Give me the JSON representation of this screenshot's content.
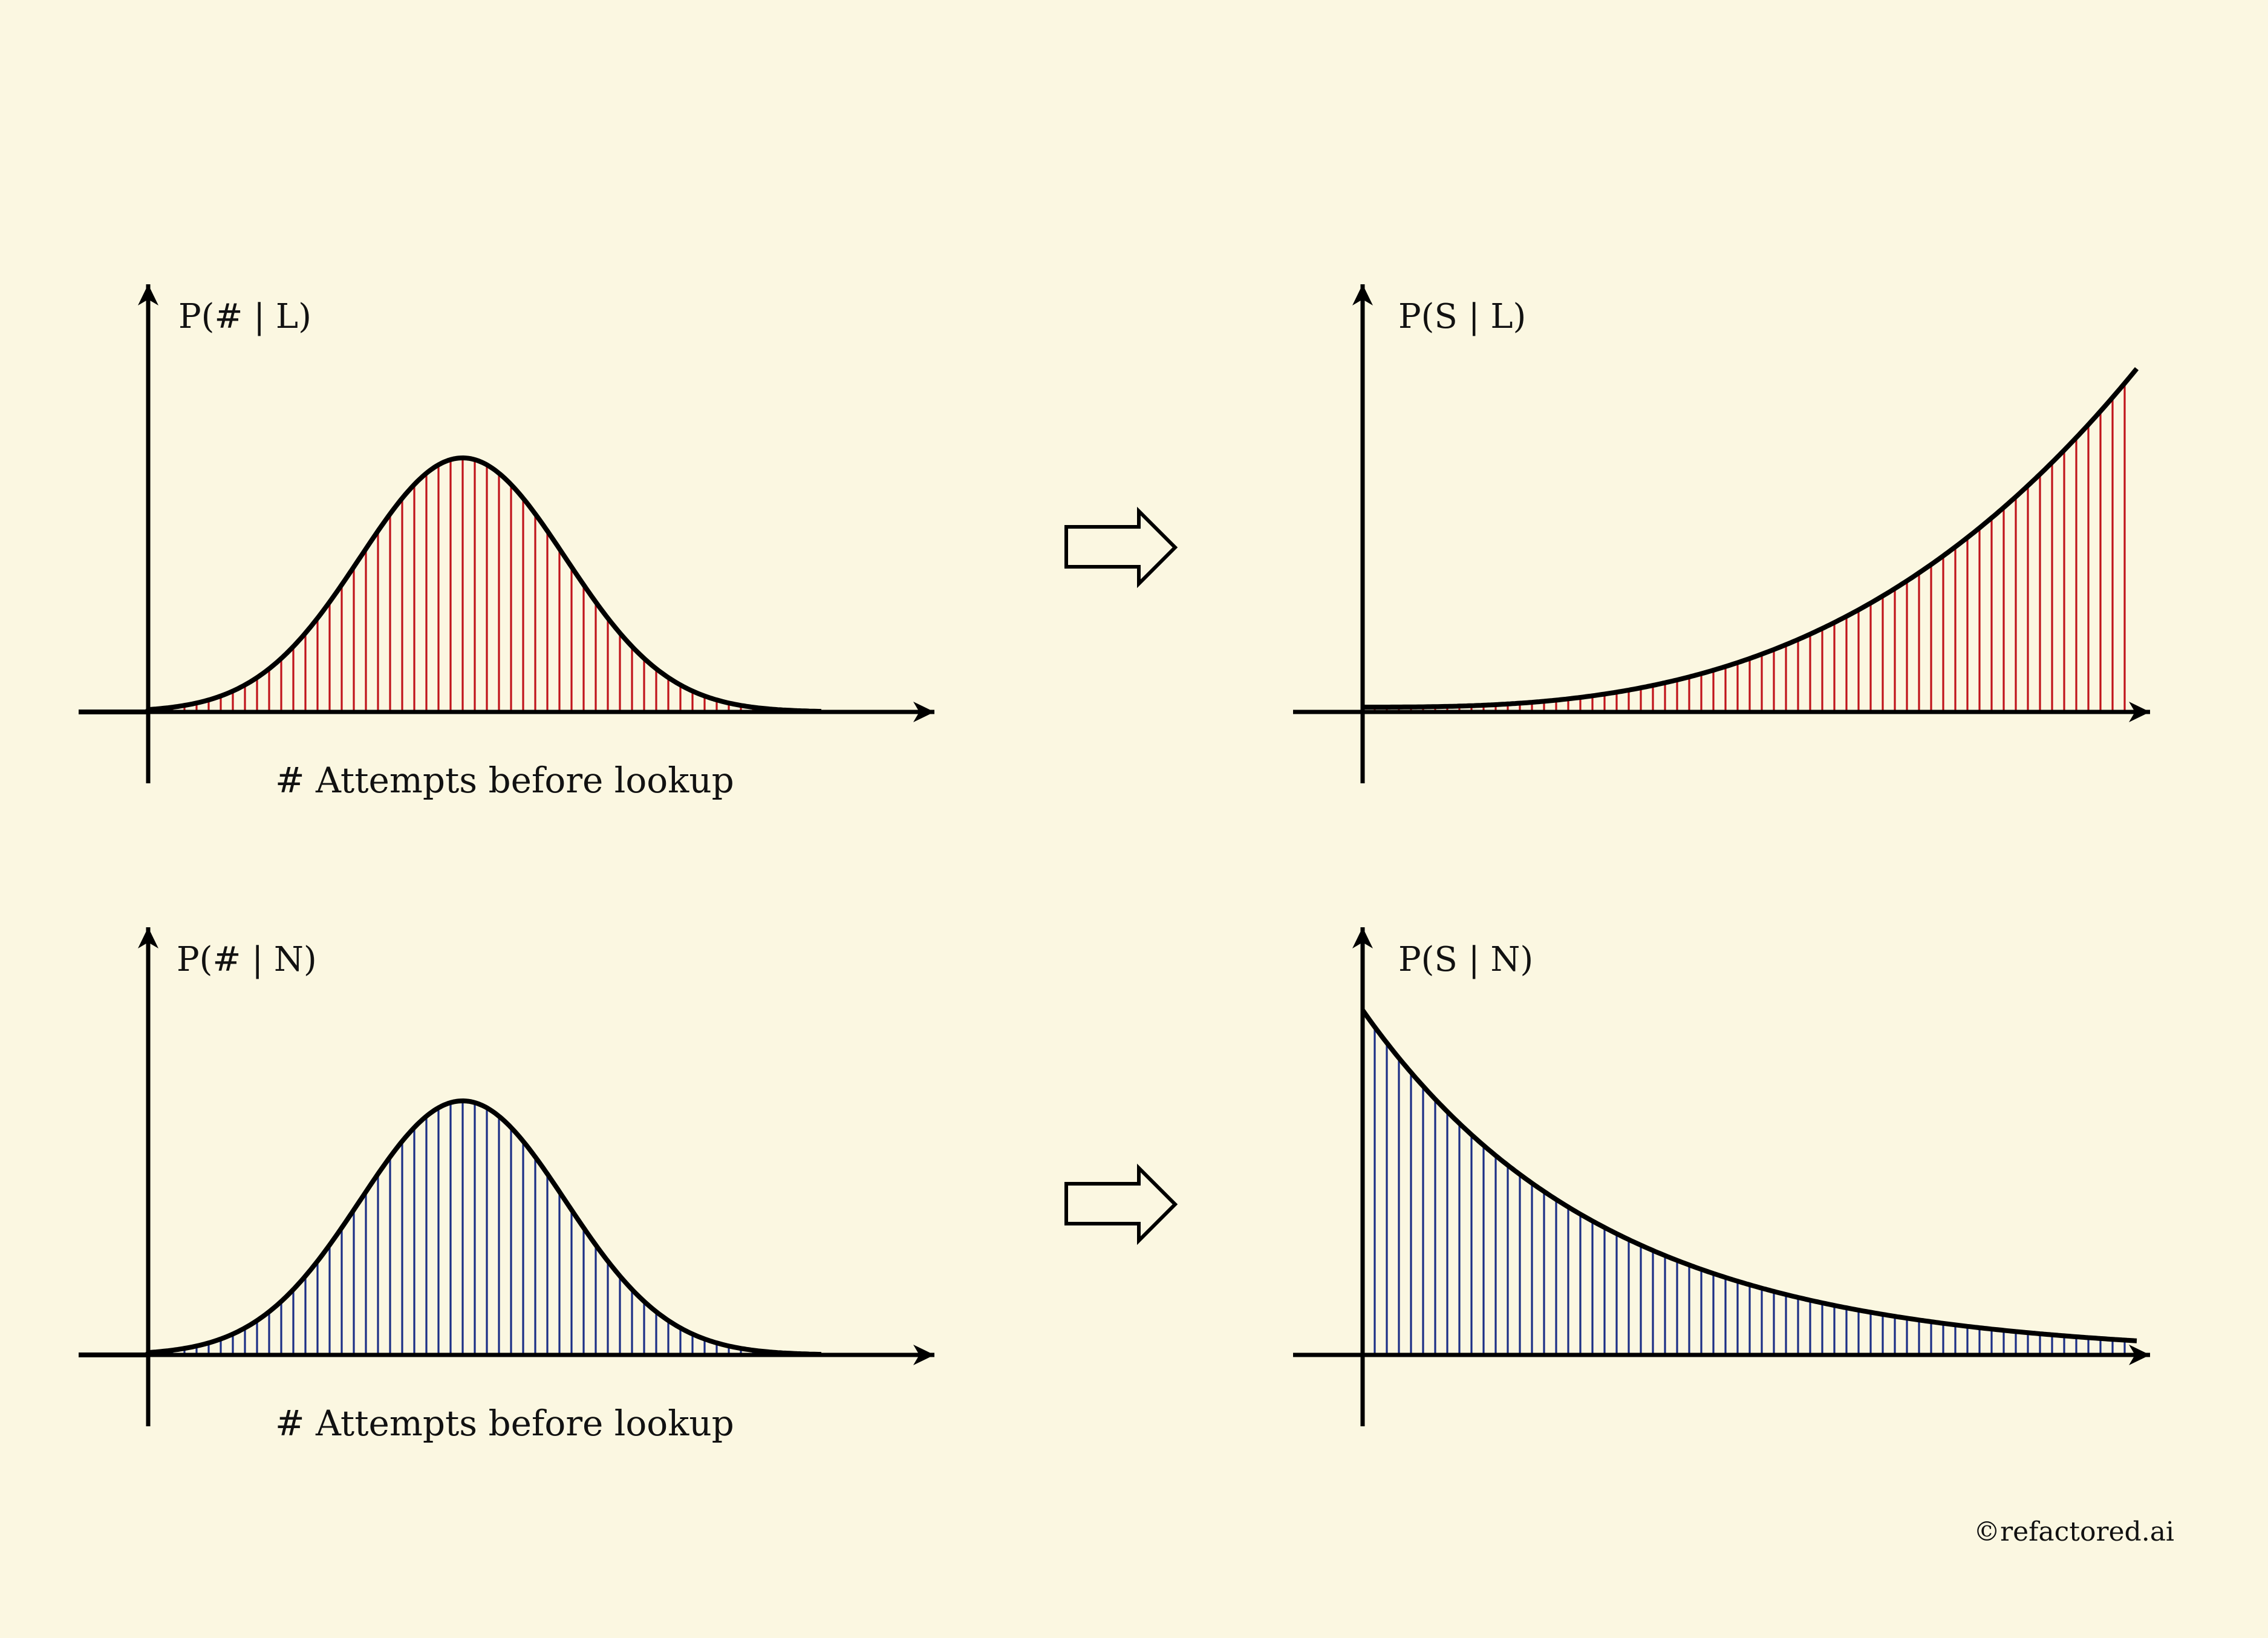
{
  "panels": [
    {
      "id": "top-left",
      "y_label": "P(# | L)",
      "x_label": "# Attempts before lookup",
      "curve": "bell",
      "hatch": "red"
    },
    {
      "id": "top-right",
      "y_label": "P(S | L)",
      "x_label": "",
      "curve": "rising",
      "hatch": "red"
    },
    {
      "id": "bottom-left",
      "y_label": "P(# | N)",
      "x_label": "# Attempts before lookup",
      "curve": "bell",
      "hatch": "blue"
    },
    {
      "id": "bottom-right",
      "y_label": "P(S | N)",
      "x_label": "",
      "curve": "falling",
      "hatch": "blue"
    }
  ],
  "colors": {
    "background": "#fbf7e1",
    "red_hatch": "#c0141b",
    "blue_hatch": "#1c2f86",
    "ink": "#000000"
  },
  "arrows": [
    "hollow-right-arrow",
    "hollow-right-arrow"
  ],
  "credit": "©refactored.ai"
}
